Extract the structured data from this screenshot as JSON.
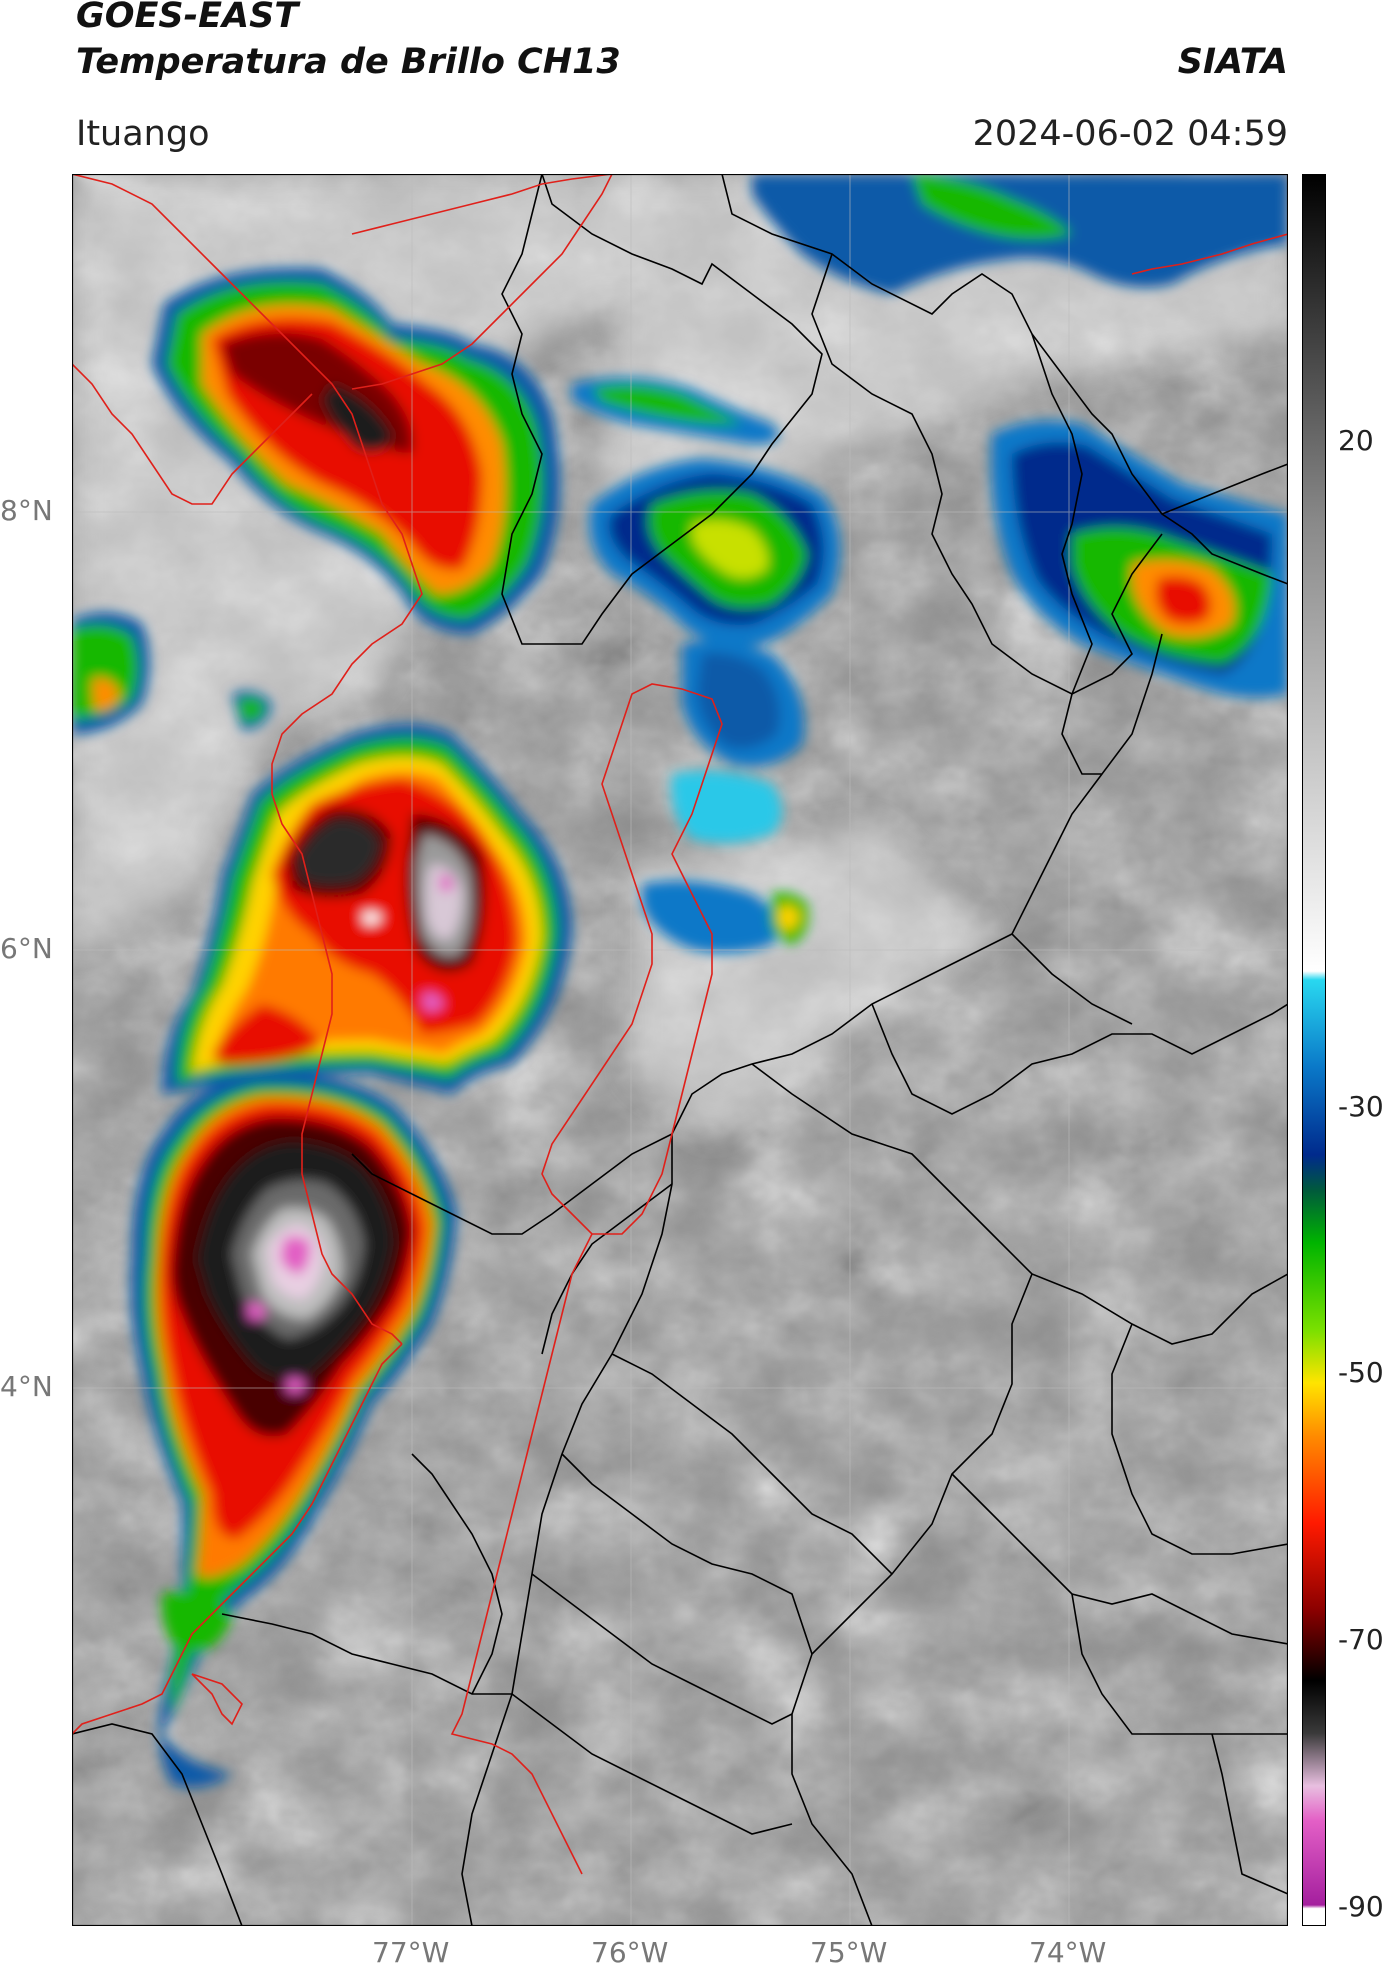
{
  "header": {
    "satellite": "GOES-EAST",
    "product": "Temperatura de Brillo CH13",
    "org": "SIATA",
    "location": "Ituango",
    "datetime": "2024-06-02 04:59"
  },
  "map": {
    "lat_labels": [
      "8°N",
      "6°N",
      "4°N"
    ],
    "lon_labels": [
      "77°W",
      "76°W",
      "75°W",
      "74°W"
    ],
    "colors": {
      "background_gray": "#8c8c8c",
      "country_border": "#e0201a",
      "admin_border": "#000000"
    }
  },
  "colorbar": {
    "ticks": [
      "20",
      "-30",
      "-50",
      "-70",
      "-90"
    ],
    "stops": [
      "#ffffff",
      "#a41f9e",
      "#e35fc6",
      "#e8bfe0",
      "#3a3a3a",
      "#000000",
      "#8a0000",
      "#ff1a00",
      "#ff8c00",
      "#ffe400",
      "#7be000",
      "#00b400",
      "#005a3c",
      "#002a8c",
      "#0a78c8",
      "#29d8f0",
      "#ffffff",
      "#8a8a8a",
      "#000000"
    ]
  }
}
